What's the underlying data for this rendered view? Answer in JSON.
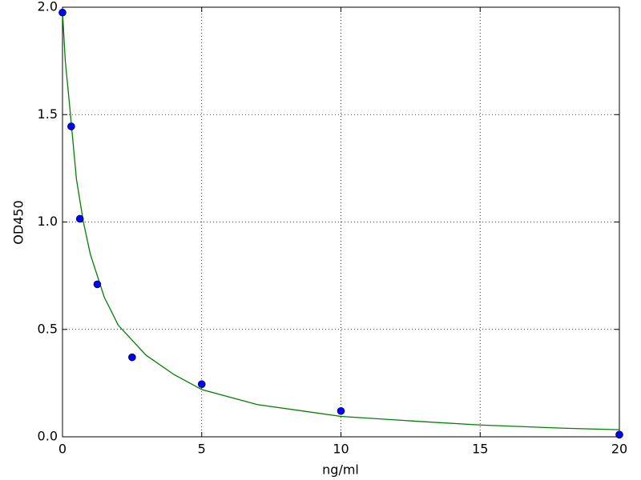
{
  "chart_data": {
    "type": "scatter",
    "xlabel": "ng/ml",
    "ylabel": "OD450",
    "xlim": [
      0,
      20
    ],
    "ylim": [
      0,
      2.0
    ],
    "xticks": [
      0,
      5,
      10,
      15,
      20
    ],
    "yticks": [
      {
        "value": 0,
        "label": "0.0"
      },
      {
        "value": 0.5,
        "label": "0.5"
      },
      {
        "value": 1.0,
        "label": "1.0"
      },
      {
        "value": 1.5,
        "label": "1.5"
      },
      {
        "value": 2.0,
        "label": "2.0"
      }
    ],
    "grid": true,
    "series": [
      {
        "type": "line",
        "color": "#008000",
        "x": [
          0,
          0.1,
          0.25,
          0.5,
          0.75,
          1,
          1.5,
          2,
          3,
          4,
          5,
          7,
          10,
          13,
          15,
          18,
          20
        ],
        "values": [
          1.98,
          1.75,
          1.55,
          1.2,
          1.0,
          0.85,
          0.65,
          0.52,
          0.38,
          0.29,
          0.22,
          0.15,
          0.095,
          0.07,
          0.055,
          0.04,
          0.033
        ]
      },
      {
        "type": "scatter",
        "color": "#0000ff",
        "x": [
          0,
          0.3125,
          0.625,
          1.25,
          2.5,
          5,
          10,
          20
        ],
        "values": [
          1.975,
          1.445,
          1.015,
          0.71,
          0.37,
          0.245,
          0.12,
          0.01
        ]
      }
    ]
  }
}
